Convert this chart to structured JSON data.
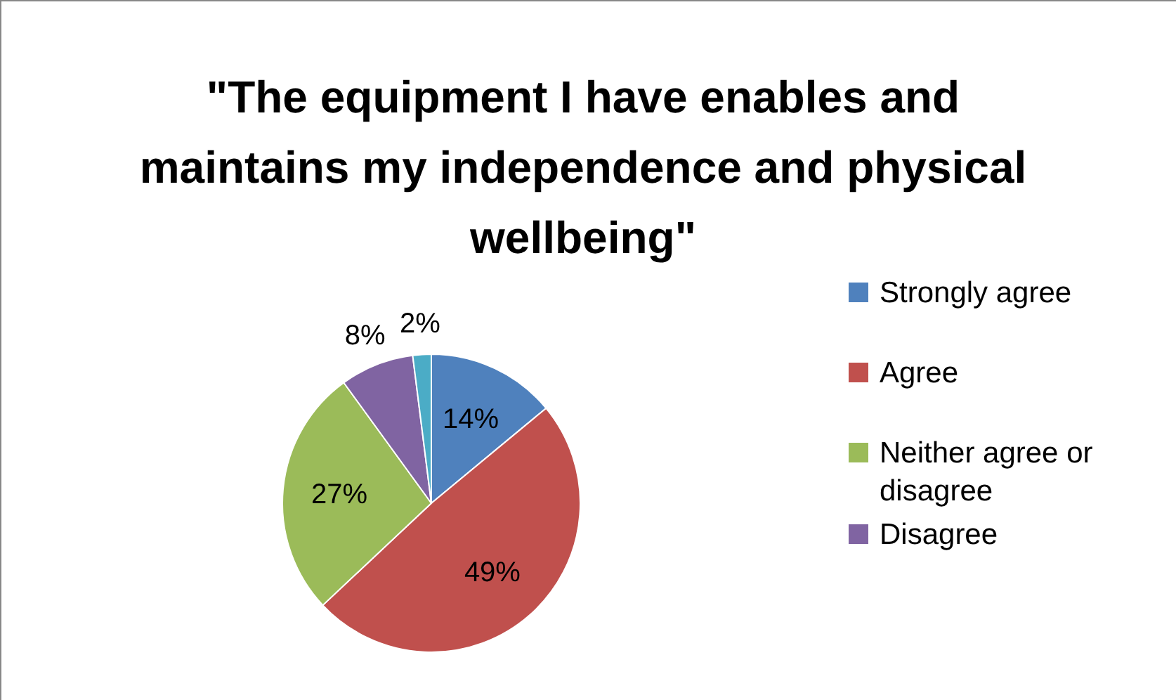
{
  "chart_data": {
    "type": "pie",
    "title": "\"The equipment I have enables and maintains my independence and physical wellbeing\"",
    "categories": [
      "Strongly agree",
      "Agree",
      "Neither agree or disagree",
      "Disagree",
      null
    ],
    "values": [
      14,
      49,
      27,
      8,
      2
    ],
    "colors": [
      "#4f81bd",
      "#c0504d",
      "#9bbb59",
      "#8064a2",
      "#4bacc6"
    ],
    "value_labels": [
      "14%",
      "49%",
      "27%",
      "8%",
      "2%"
    ],
    "legend": "right"
  }
}
